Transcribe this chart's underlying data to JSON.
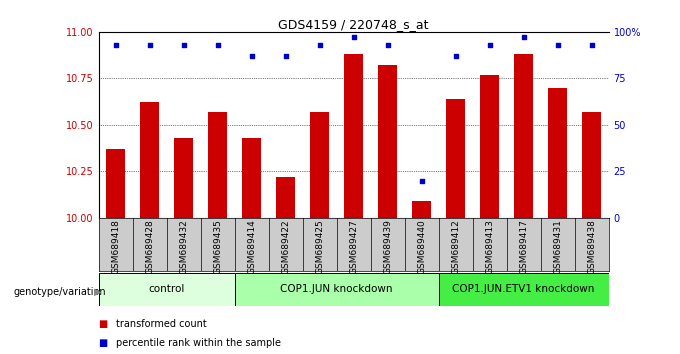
{
  "title": "GDS4159 / 220748_s_at",
  "samples": [
    "GSM689418",
    "GSM689428",
    "GSM689432",
    "GSM689435",
    "GSM689414",
    "GSM689422",
    "GSM689425",
    "GSM689427",
    "GSM689439",
    "GSM689440",
    "GSM689412",
    "GSM689413",
    "GSM689417",
    "GSM689431",
    "GSM689438"
  ],
  "bar_values": [
    10.37,
    10.62,
    10.43,
    10.57,
    10.43,
    10.22,
    10.57,
    10.88,
    10.82,
    10.09,
    10.64,
    10.77,
    10.88,
    10.7,
    10.57
  ],
  "dot_values": [
    93,
    93,
    93,
    93,
    87,
    87,
    93,
    97,
    93,
    20,
    87,
    93,
    97,
    93,
    93
  ],
  "bar_color": "#cc0000",
  "dot_color": "#0000cc",
  "ylim_left": [
    10.0,
    11.0
  ],
  "ylim_right": [
    0,
    100
  ],
  "yticks_left": [
    10.0,
    10.25,
    10.5,
    10.75,
    11.0
  ],
  "yticks_right": [
    0,
    25,
    50,
    75,
    100
  ],
  "groups": [
    {
      "label": "control",
      "start": 0,
      "end": 4,
      "color": "#ddffdd"
    },
    {
      "label": "COP1.JUN knockdown",
      "start": 4,
      "end": 10,
      "color": "#aaffaa"
    },
    {
      "label": "COP1.JUN.ETV1 knockdown",
      "start": 10,
      "end": 15,
      "color": "#44ee44"
    }
  ],
  "group_row_label": "genotype/variation",
  "legend_bar_label": "transformed count",
  "legend_dot_label": "percentile rank within the sample",
  "bar_width": 0.55,
  "xlabels_bg": "#cccccc",
  "tick_label_color_left": "#cc0000",
  "tick_label_color_right": "#0000cc"
}
